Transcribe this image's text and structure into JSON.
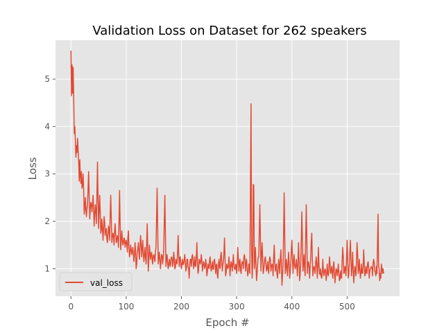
{
  "chart_data": {
    "type": "line",
    "title": "Validation Loss on  Dataset for 262 speakers",
    "xlabel": "Epoch #",
    "ylabel": "Loss",
    "xlim": [
      -28,
      595
    ],
    "ylim": [
      0.42,
      5.82
    ],
    "x_ticks": [
      0,
      100,
      200,
      300,
      400,
      500
    ],
    "y_ticks": [
      1,
      2,
      3,
      4,
      5
    ],
    "grid": true,
    "legend_position": "lower left",
    "style": "ggplot",
    "series": [
      {
        "name": "val_loss",
        "color": "#E24A33",
        "x_start": 0,
        "x_step": 1,
        "keypoints": [
          [
            0,
            5.6
          ],
          [
            1,
            4.65
          ],
          [
            2,
            5.3
          ],
          [
            3,
            4.7
          ],
          [
            4,
            5.25
          ],
          [
            5,
            4.6
          ],
          [
            6,
            3.85
          ],
          [
            7,
            4.0
          ],
          [
            8,
            3.7
          ],
          [
            9,
            3.35
          ],
          [
            10,
            3.6
          ],
          [
            11,
            3.45
          ],
          [
            12,
            3.75
          ],
          [
            13,
            3.5
          ],
          [
            14,
            3.25
          ],
          [
            15,
            2.85
          ],
          [
            16,
            3.3
          ],
          [
            17,
            2.95
          ],
          [
            18,
            2.8
          ],
          [
            19,
            3.05
          ],
          [
            20,
            2.7
          ],
          [
            22,
            3.0
          ],
          [
            24,
            2.15
          ],
          [
            26,
            2.5
          ],
          [
            28,
            2.1
          ],
          [
            30,
            2.35
          ],
          [
            32,
            3.05
          ],
          [
            34,
            2.05
          ],
          [
            36,
            2.4
          ],
          [
            38,
            2.2
          ],
          [
            40,
            2.55
          ],
          [
            42,
            1.9
          ],
          [
            44,
            2.35
          ],
          [
            46,
            1.95
          ],
          [
            48,
            3.25
          ],
          [
            50,
            1.85
          ],
          [
            52,
            2.55
          ],
          [
            54,
            1.75
          ],
          [
            56,
            2.05
          ],
          [
            58,
            1.6
          ],
          [
            60,
            2.1
          ],
          [
            62,
            1.7
          ],
          [
            64,
            1.85
          ],
          [
            66,
            1.55
          ],
          [
            68,
            1.9
          ],
          [
            70,
            1.6
          ],
          [
            72,
            2.55
          ],
          [
            74,
            1.55
          ],
          [
            76,
            1.75
          ],
          [
            78,
            1.5
          ],
          [
            80,
            1.95
          ],
          [
            82,
            1.55
          ],
          [
            84,
            1.7
          ],
          [
            86,
            1.45
          ],
          [
            88,
            2.65
          ],
          [
            90,
            1.4
          ],
          [
            92,
            1.8
          ],
          [
            94,
            1.5
          ],
          [
            96,
            1.65
          ],
          [
            98,
            1.45
          ],
          [
            100,
            1.6
          ],
          [
            102,
            1.35
          ],
          [
            104,
            1.8
          ],
          [
            106,
            1.25
          ],
          [
            108,
            1.5
          ],
          [
            110,
            1.3
          ],
          [
            112,
            1.45
          ],
          [
            114,
            1.15
          ],
          [
            116,
            1.55
          ],
          [
            118,
            1.0
          ],
          [
            120,
            1.35
          ],
          [
            122,
            1.55
          ],
          [
            124,
            1.2
          ],
          [
            126,
            1.7
          ],
          [
            128,
            1.25
          ],
          [
            130,
            1.6
          ],
          [
            132,
            1.15
          ],
          [
            134,
            1.45
          ],
          [
            136,
            1.1
          ],
          [
            138,
            1.95
          ],
          [
            140,
            0.95
          ],
          [
            142,
            1.5
          ],
          [
            144,
            1.2
          ],
          [
            146,
            1.35
          ],
          [
            148,
            1.1
          ],
          [
            150,
            1.3
          ],
          [
            152,
            1.15
          ],
          [
            154,
            1.45
          ],
          [
            156,
            2.7
          ],
          [
            158,
            1.1
          ],
          [
            160,
            1.35
          ],
          [
            162,
            1.0
          ],
          [
            164,
            1.3
          ],
          [
            166,
            1.1
          ],
          [
            168,
            1.4
          ],
          [
            170,
            2.55
          ],
          [
            172,
            1.05
          ],
          [
            174,
            1.3
          ],
          [
            176,
            1.0
          ],
          [
            178,
            1.2
          ],
          [
            180,
            1.05
          ],
          [
            182,
            1.25
          ],
          [
            184,
            1.05
          ],
          [
            186,
            1.35
          ],
          [
            188,
            1.0
          ],
          [
            190,
            1.2
          ],
          [
            192,
            1.1
          ],
          [
            194,
            1.7
          ],
          [
            196,
            1.05
          ],
          [
            198,
            1.25
          ],
          [
            200,
            1.0
          ],
          [
            202,
            1.2
          ],
          [
            204,
            1.1
          ],
          [
            206,
            1.3
          ],
          [
            208,
            0.95
          ],
          [
            210,
            1.2
          ],
          [
            212,
            1.05
          ],
          [
            214,
            0.8
          ],
          [
            216,
            1.2
          ],
          [
            218,
            1.05
          ],
          [
            220,
            1.3
          ],
          [
            222,
            1.0
          ],
          [
            224,
            1.25
          ],
          [
            226,
            1.05
          ],
          [
            228,
            1.55
          ],
          [
            230,
            0.9
          ],
          [
            232,
            1.2
          ],
          [
            234,
            1.1
          ],
          [
            236,
            1.3
          ],
          [
            238,
            0.95
          ],
          [
            240,
            1.15
          ],
          [
            242,
            1.0
          ],
          [
            244,
            1.2
          ],
          [
            246,
            0.85
          ],
          [
            248,
            1.1
          ],
          [
            250,
            1.0
          ],
          [
            252,
            1.25
          ],
          [
            254,
            0.95
          ],
          [
            256,
            1.15
          ],
          [
            258,
            1.0
          ],
          [
            260,
            1.2
          ],
          [
            262,
            0.9
          ],
          [
            264,
            1.1
          ],
          [
            266,
            0.8
          ],
          [
            268,
            1.2
          ],
          [
            270,
            1.0
          ],
          [
            272,
            1.35
          ],
          [
            274,
            0.95
          ],
          [
            276,
            1.15
          ],
          [
            278,
            1.65
          ],
          [
            280,
            0.85
          ],
          [
            282,
            1.1
          ],
          [
            284,
            1.0
          ],
          [
            286,
            1.25
          ],
          [
            288,
            0.85
          ],
          [
            290,
            1.15
          ],
          [
            292,
            0.95
          ],
          [
            294,
            1.3
          ],
          [
            296,
            1.0
          ],
          [
            298,
            1.1
          ],
          [
            300,
            0.9
          ],
          [
            302,
            1.45
          ],
          [
            304,
            0.95
          ],
          [
            306,
            1.2
          ],
          [
            308,
            0.9
          ],
          [
            310,
            1.15
          ],
          [
            312,
            1.0
          ],
          [
            314,
            1.3
          ],
          [
            316,
            0.95
          ],
          [
            318,
            1.2
          ],
          [
            320,
            0.85
          ],
          [
            322,
            1.1
          ],
          [
            324,
            0.9
          ],
          [
            326,
            4.48
          ],
          [
            327,
            1.5
          ],
          [
            328,
            0.8
          ],
          [
            329,
            1.05
          ],
          [
            330,
            2.78
          ],
          [
            331,
            2.75
          ],
          [
            332,
            1.0
          ],
          [
            334,
            1.45
          ],
          [
            336,
            0.75
          ],
          [
            338,
            1.1
          ],
          [
            340,
            1.25
          ],
          [
            342,
            2.35
          ],
          [
            344,
            0.95
          ],
          [
            346,
            1.55
          ],
          [
            348,
            0.9
          ],
          [
            350,
            1.1
          ],
          [
            352,
            1.25
          ],
          [
            354,
            0.95
          ],
          [
            356,
            1.15
          ],
          [
            358,
            0.9
          ],
          [
            360,
            1.25
          ],
          [
            362,
            0.95
          ],
          [
            364,
            1.1
          ],
          [
            366,
            0.85
          ],
          [
            368,
            1.5
          ],
          [
            370,
            0.95
          ],
          [
            372,
            1.1
          ],
          [
            374,
            0.8
          ],
          [
            376,
            1.2
          ],
          [
            378,
            0.9
          ],
          [
            380,
            1.4
          ],
          [
            382,
            0.65
          ],
          [
            384,
            1.05
          ],
          [
            386,
            2.6
          ],
          [
            388,
            0.9
          ],
          [
            390,
            1.2
          ],
          [
            392,
            0.85
          ],
          [
            394,
            1.35
          ],
          [
            396,
            0.8
          ],
          [
            398,
            1.1
          ],
          [
            400,
            1.6
          ],
          [
            402,
            0.9
          ],
          [
            404,
            1.3
          ],
          [
            406,
            1.0
          ],
          [
            408,
            1.2
          ],
          [
            410,
            0.85
          ],
          [
            412,
            1.55
          ],
          [
            414,
            0.75
          ],
          [
            416,
            1.1
          ],
          [
            418,
            2.2
          ],
          [
            420,
            0.95
          ],
          [
            422,
            1.3
          ],
          [
            424,
            0.85
          ],
          [
            426,
            2.35
          ],
          [
            428,
            0.9
          ],
          [
            430,
            1.15
          ],
          [
            432,
            0.8
          ],
          [
            434,
            1.2
          ],
          [
            436,
            1.75
          ],
          [
            438,
            0.85
          ],
          [
            440,
            1.05
          ],
          [
            442,
            0.9
          ],
          [
            444,
            1.25
          ],
          [
            446,
            0.8
          ],
          [
            448,
            1.45
          ],
          [
            450,
            0.9
          ],
          [
            452,
            1.0
          ],
          [
            454,
            0.8
          ],
          [
            456,
            1.2
          ],
          [
            458,
            0.85
          ],
          [
            460,
            1.0
          ],
          [
            462,
            0.75
          ],
          [
            464,
            1.1
          ],
          [
            466,
            0.85
          ],
          [
            468,
            1.25
          ],
          [
            470,
            0.9
          ],
          [
            472,
            1.05
          ],
          [
            474,
            0.8
          ],
          [
            476,
            1.15
          ],
          [
            478,
            0.7
          ],
          [
            480,
            1.0
          ],
          [
            482,
            0.85
          ],
          [
            484,
            1.1
          ],
          [
            486,
            0.75
          ],
          [
            488,
            0.95
          ],
          [
            490,
            0.8
          ],
          [
            492,
            1.45
          ],
          [
            494,
            0.9
          ],
          [
            496,
            1.05
          ],
          [
            498,
            0.85
          ],
          [
            500,
            1.6
          ],
          [
            502,
            0.8
          ],
          [
            504,
            1.1
          ],
          [
            506,
            1.6
          ],
          [
            508,
            0.85
          ],
          [
            510,
            1.35
          ],
          [
            512,
            0.7
          ],
          [
            514,
            1.05
          ],
          [
            516,
            0.85
          ],
          [
            518,
            1.55
          ],
          [
            520,
            0.9
          ],
          [
            522,
            1.2
          ],
          [
            524,
            0.8
          ],
          [
            526,
            1.1
          ],
          [
            528,
            0.9
          ],
          [
            530,
            1.4
          ],
          [
            532,
            0.85
          ],
          [
            534,
            1.05
          ],
          [
            536,
            0.9
          ],
          [
            538,
            1.15
          ],
          [
            540,
            0.8
          ],
          [
            542,
            1.0
          ],
          [
            544,
            1.05
          ],
          [
            546,
            0.85
          ],
          [
            548,
            1.2
          ],
          [
            550,
            0.95
          ],
          [
            552,
            0.85
          ],
          [
            553,
            1.05
          ],
          [
            554,
            0.9
          ],
          [
            556,
            2.15
          ],
          [
            557,
            1.05
          ],
          [
            558,
            1.0
          ],
          [
            559,
            0.75
          ],
          [
            560,
            0.9
          ],
          [
            561,
            0.8
          ],
          [
            562,
            1.1
          ],
          [
            563,
            1.0
          ],
          [
            564,
            0.9
          ],
          [
            565,
            1.0
          ],
          [
            566,
            0.9
          ]
        ]
      }
    ]
  }
}
